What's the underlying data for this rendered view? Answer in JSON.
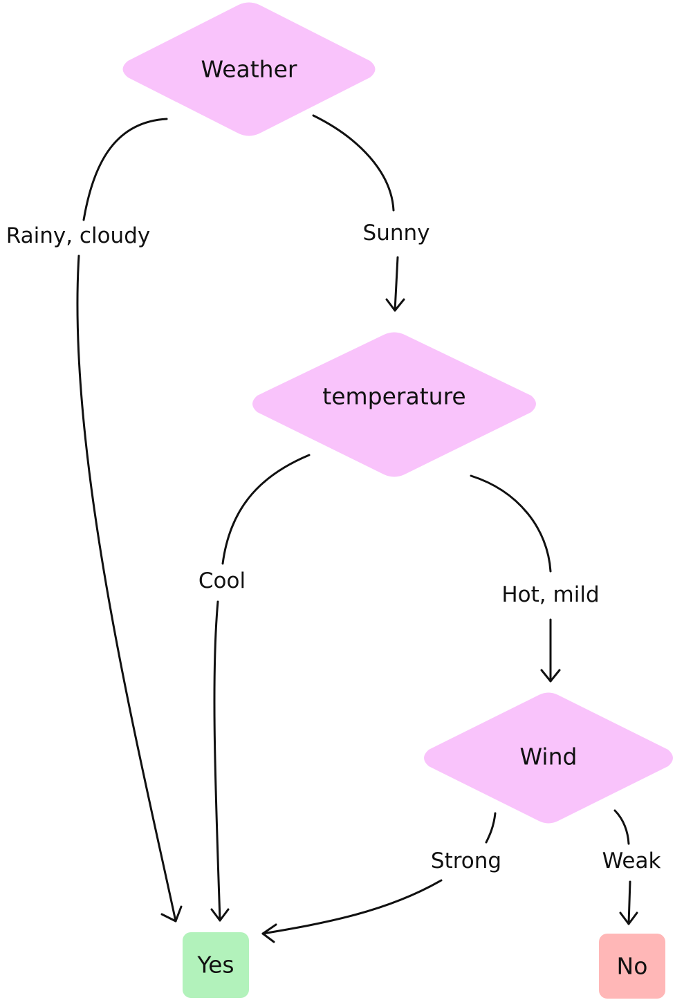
{
  "colors": {
    "decision": "#f9c3fb",
    "yes": "#b2f2bb",
    "no": "#ffb7b7",
    "stroke": "#111111"
  },
  "nodes": {
    "weather": {
      "label": "Weather"
    },
    "temperature": {
      "label": "temperature"
    },
    "wind": {
      "label": "Wind"
    },
    "yes": {
      "label": "Yes"
    },
    "no": {
      "label": "No"
    }
  },
  "edges": {
    "rainy_cloudy": {
      "label": "Rainy, cloudy"
    },
    "sunny": {
      "label": "Sunny"
    },
    "cool": {
      "label": "Cool"
    },
    "hot_mild": {
      "label": "Hot, mild"
    },
    "strong": {
      "label": "Strong"
    },
    "weak": {
      "label": "Weak"
    }
  }
}
